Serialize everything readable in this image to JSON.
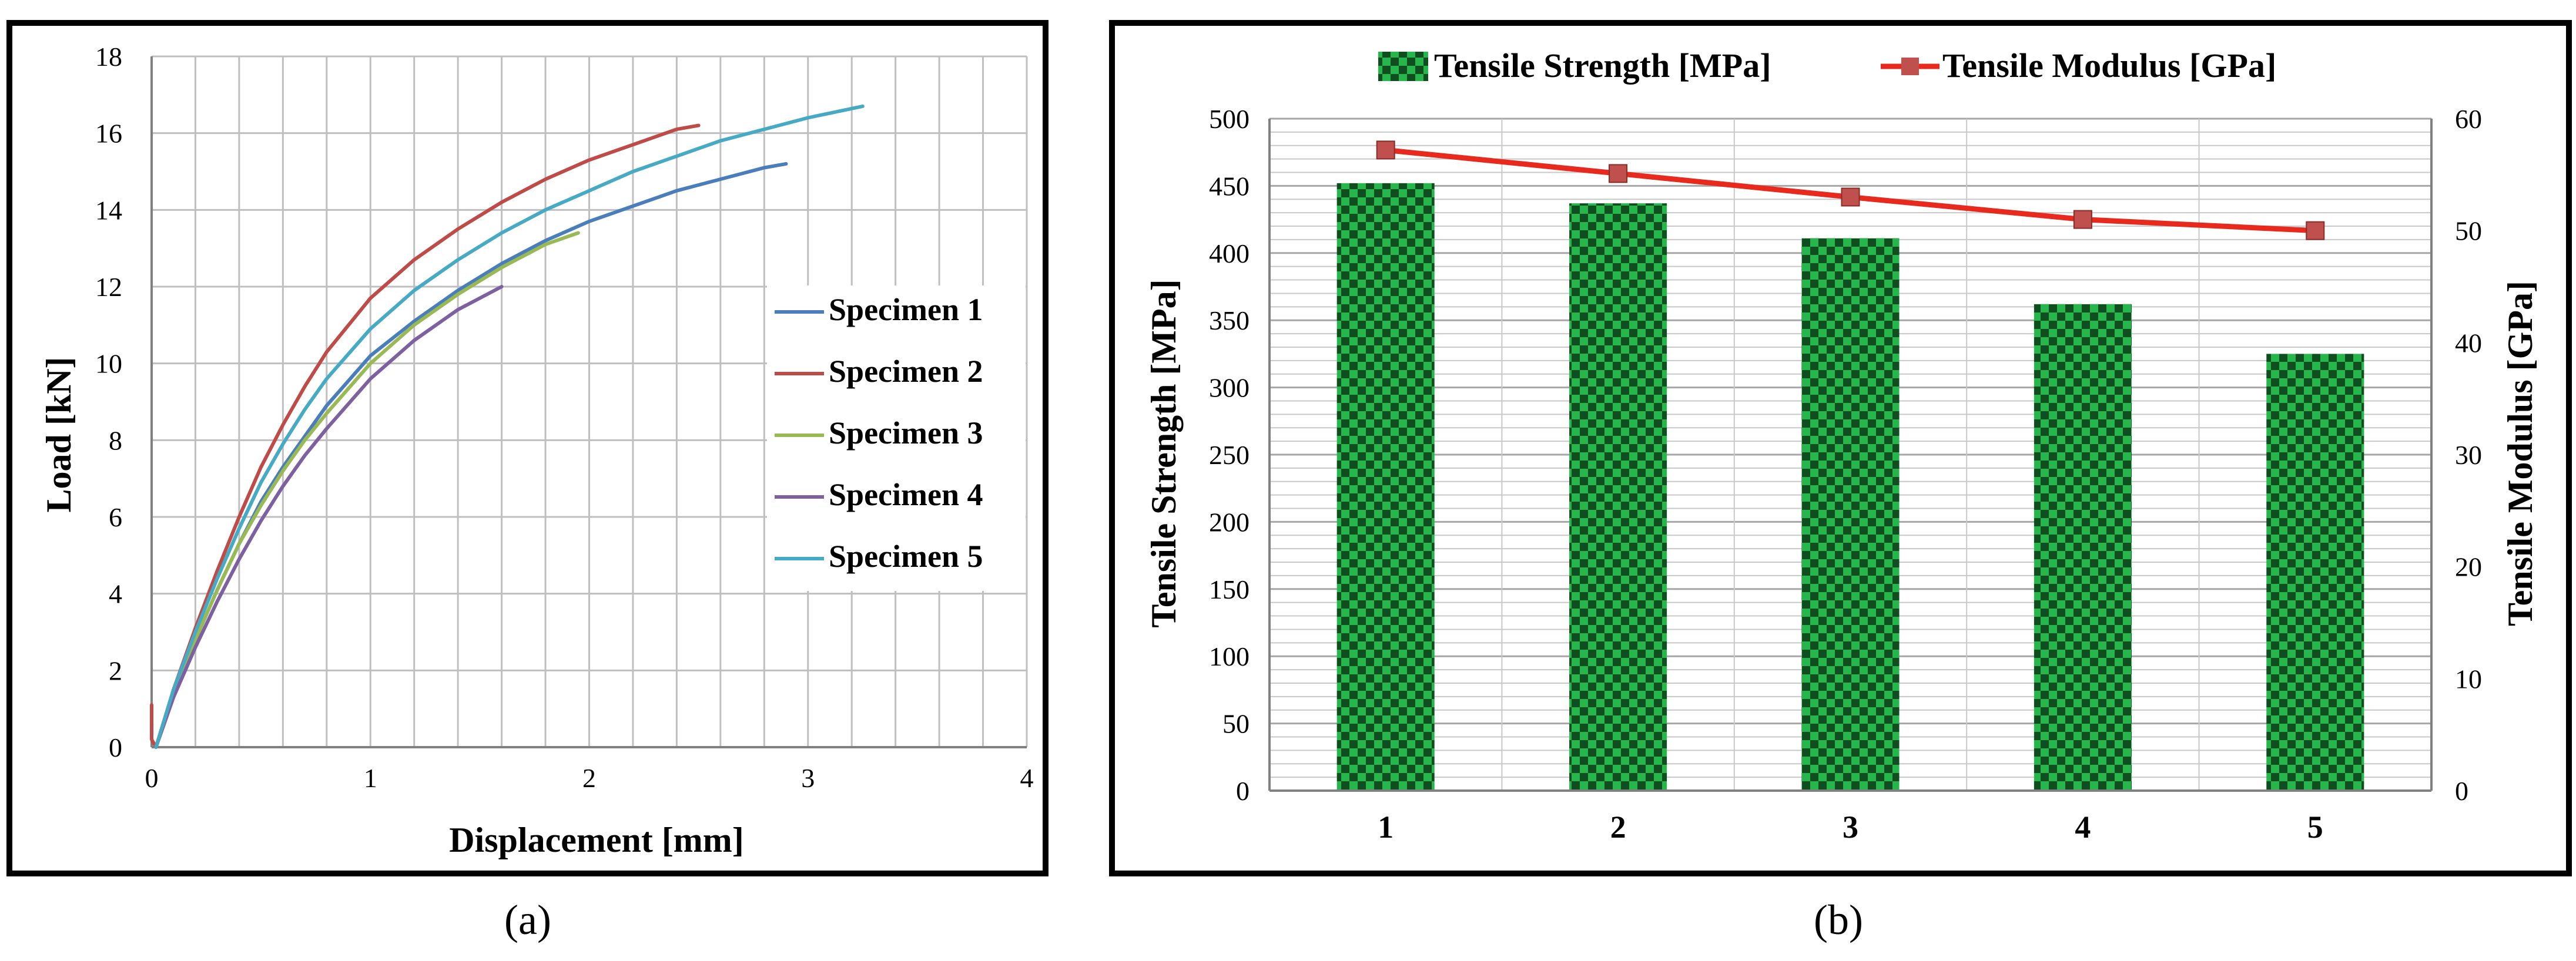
{
  "panel_labels": [
    "(a)",
    "(b)"
  ],
  "colors": {
    "specimen_1": "#4a7ebb",
    "specimen_2": "#be4b48",
    "specimen_3": "#98b954",
    "specimen_4": "#7d60a0",
    "specimen_5": "#46aac5",
    "bar_dark": "#0f4f1f",
    "bar_light": "#27b64c",
    "modulus_line": "#e8291d",
    "modulus_marker": "#c0504d",
    "grid": "#bfbfbf",
    "frame": "#000000"
  },
  "chart_data": [
    {
      "type": "line",
      "panel": "(a)",
      "title": "",
      "xlabel": "Displacement [mm]",
      "ylabel": "Load [kN]",
      "xlim": [
        0,
        4
      ],
      "ylim": [
        0,
        18
      ],
      "x_ticks": [
        0,
        1,
        2,
        3,
        4
      ],
      "y_ticks": [
        0,
        2,
        4,
        6,
        8,
        10,
        12,
        14,
        16,
        18
      ],
      "grid": true,
      "legend": "right",
      "series": [
        {
          "name": "Specimen 1",
          "color_key": "specimen_1",
          "x": [
            0.02,
            0.1,
            0.2,
            0.3,
            0.4,
            0.5,
            0.6,
            0.7,
            0.8,
            1.0,
            1.2,
            1.4,
            1.6,
            1.8,
            2.0,
            2.2,
            2.4,
            2.6,
            2.8,
            2.9
          ],
          "y": [
            0,
            1.4,
            2.8,
            4.1,
            5.3,
            6.4,
            7.3,
            8.1,
            8.9,
            10.2,
            11.1,
            11.9,
            12.6,
            13.2,
            13.7,
            14.1,
            14.5,
            14.8,
            15.1,
            15.2
          ]
        },
        {
          "name": "Specimen 2",
          "color_key": "specimen_2",
          "x": [
            0.0,
            0.0,
            0.02,
            0.1,
            0.2,
            0.3,
            0.4,
            0.5,
            0.6,
            0.7,
            0.8,
            1.0,
            1.2,
            1.4,
            1.6,
            1.8,
            2.0,
            2.2,
            2.4,
            2.5
          ],
          "y": [
            1.1,
            0.2,
            0,
            1.5,
            3.1,
            4.6,
            6.0,
            7.3,
            8.4,
            9.4,
            10.3,
            11.7,
            12.7,
            13.5,
            14.2,
            14.8,
            15.3,
            15.7,
            16.1,
            16.2
          ]
        },
        {
          "name": "Specimen 3",
          "color_key": "specimen_3",
          "x": [
            0.02,
            0.1,
            0.2,
            0.3,
            0.4,
            0.5,
            0.6,
            0.7,
            0.8,
            1.0,
            1.2,
            1.4,
            1.6,
            1.8,
            1.95
          ],
          "y": [
            0,
            1.4,
            2.8,
            4.1,
            5.3,
            6.3,
            7.2,
            8.0,
            8.7,
            10.0,
            11.0,
            11.8,
            12.5,
            13.1,
            13.4
          ]
        },
        {
          "name": "Specimen 4",
          "color_key": "specimen_4",
          "x": [
            0.02,
            0.1,
            0.2,
            0.3,
            0.4,
            0.5,
            0.6,
            0.7,
            0.8,
            1.0,
            1.2,
            1.4,
            1.6
          ],
          "y": [
            0,
            1.3,
            2.6,
            3.8,
            4.9,
            5.9,
            6.8,
            7.6,
            8.3,
            9.6,
            10.6,
            11.4,
            12.0
          ]
        },
        {
          "name": "Specimen 5",
          "color_key": "specimen_5",
          "x": [
            0.02,
            0.1,
            0.2,
            0.3,
            0.4,
            0.5,
            0.6,
            0.7,
            0.8,
            1.0,
            1.2,
            1.4,
            1.6,
            1.8,
            2.0,
            2.2,
            2.4,
            2.6,
            2.8,
            3.0,
            3.25
          ],
          "y": [
            0,
            1.5,
            3.0,
            4.4,
            5.7,
            6.9,
            7.9,
            8.8,
            9.6,
            10.9,
            11.9,
            12.7,
            13.4,
            14.0,
            14.5,
            15.0,
            15.4,
            15.8,
            16.1,
            16.4,
            16.7
          ]
        }
      ]
    },
    {
      "type": "bar",
      "panel": "(b)",
      "title": "",
      "categories": [
        "1",
        "2",
        "3",
        "4",
        "5"
      ],
      "xlabel": "",
      "ylabel": "Tensile Strength [MPa]",
      "y2label": "Tensile Modulus [GPa]",
      "ylim": [
        0,
        500
      ],
      "y2lim": [
        0,
        60
      ],
      "y_ticks": [
        0,
        50,
        100,
        150,
        200,
        250,
        300,
        350,
        400,
        450,
        500
      ],
      "y2_ticks": [
        0,
        10,
        20,
        30,
        40,
        50,
        60
      ],
      "grid": true,
      "legend": "top",
      "series": [
        {
          "name": "Tensile Strength [MPa]",
          "kind": "bar",
          "axis": "left",
          "values": [
            452,
            437,
            411,
            362,
            325
          ]
        },
        {
          "name": "Tensile Modulus [GPa]",
          "kind": "line",
          "axis": "right",
          "values": [
            57.2,
            55.1,
            53.0,
            51.0,
            50.0
          ]
        }
      ]
    }
  ]
}
